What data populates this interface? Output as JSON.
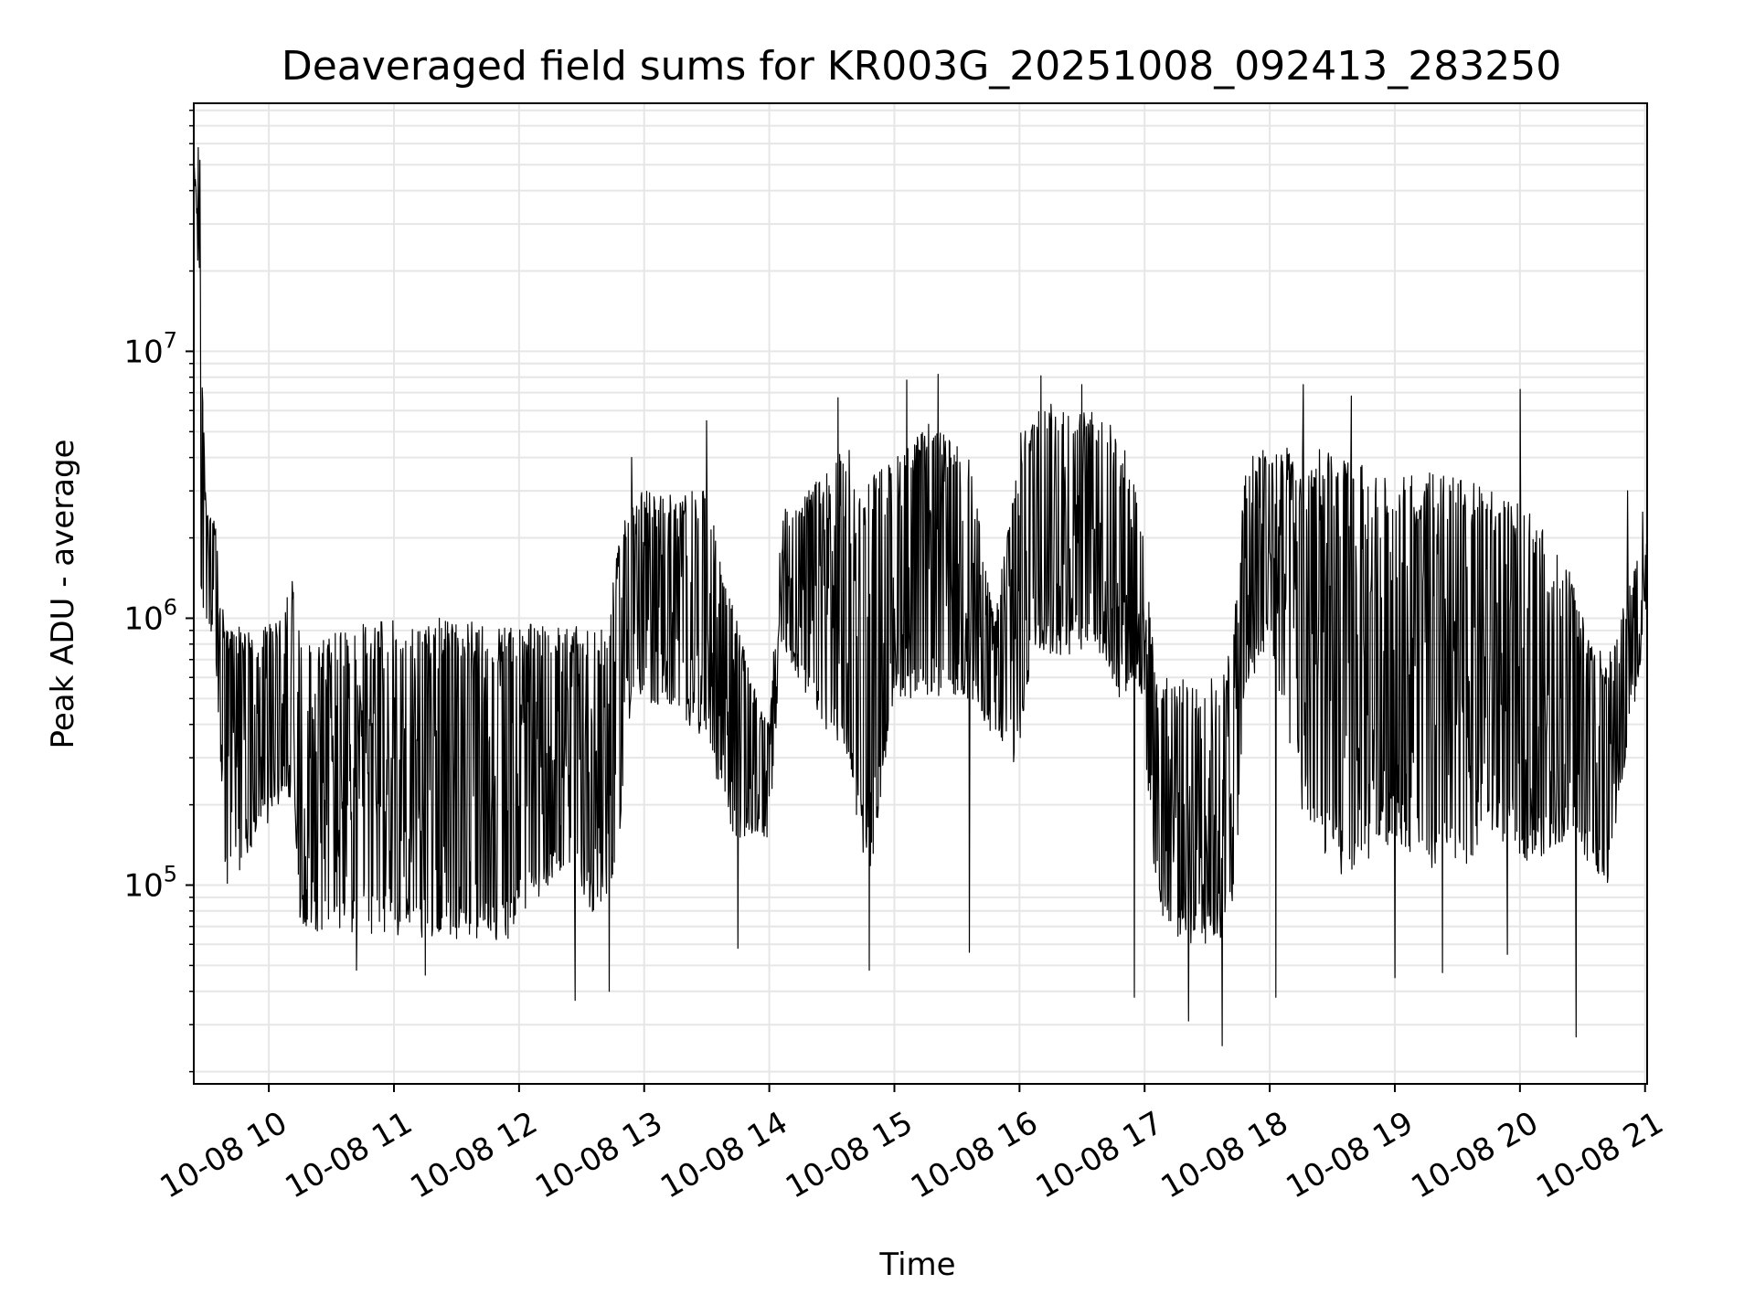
{
  "chart_data": {
    "type": "line",
    "title": "Deaveraged field sums for KR003G_20251008_092413_283250",
    "xlabel": "Time",
    "ylabel": "Peak ADU - average",
    "y_scale": "log",
    "grid": true,
    "x_range": [
      "2025-10-08 09:24",
      "2025-10-08 21:01"
    ],
    "ylim": [
      18000,
      85000000
    ],
    "x_tick_labels": [
      "10-08 10",
      "10-08 11",
      "10-08 12",
      "10-08 13",
      "10-08 14",
      "10-08 15",
      "10-08 16",
      "10-08 17",
      "10-08 18",
      "10-08 19",
      "10-08 20",
      "10-08 21"
    ],
    "x_tick_hours": [
      10,
      11,
      12,
      13,
      14,
      15,
      16,
      17,
      18,
      19,
      20,
      21
    ],
    "y_tick_labels": [
      {
        "value": 100000,
        "base": "10",
        "exp": "5"
      },
      {
        "value": 1000000,
        "base": "10",
        "exp": "6"
      },
      {
        "value": 10000000,
        "base": "10",
        "exp": "7"
      }
    ],
    "series_color": "#000000",
    "envelope_hours": [
      9.42,
      9.5,
      9.58,
      9.66,
      9.75,
      9.9,
      10.1,
      10.2,
      10.25,
      10.5,
      11.0,
      11.5,
      11.9,
      12.3,
      12.7,
      12.8,
      12.9,
      13.2,
      13.5,
      13.7,
      13.85,
      14.0,
      14.1,
      14.3,
      14.6,
      14.8,
      15.0,
      15.3,
      15.6,
      15.8,
      16.0,
      16.1,
      16.3,
      16.6,
      16.8,
      16.95,
      17.1,
      17.3,
      17.6,
      17.72,
      17.8,
      18.0,
      18.3,
      18.6,
      19.0,
      19.4,
      19.8,
      20.1,
      20.4,
      20.55,
      20.7,
      20.85,
      20.95,
      21.0
    ],
    "envelope_low": [
      1100000,
      1000000,
      600000,
      90000,
      110000,
      150000,
      200000,
      220000,
      70000,
      65000,
      65000,
      62000,
      62000,
      110000,
      70000,
      150000,
      500000,
      450000,
      350000,
      150000,
      150000,
      150000,
      800000,
      500000,
      300000,
      100000,
      500000,
      500000,
      500000,
      350000,
      250000,
      800000,
      700000,
      800000,
      500000,
      600000,
      80000,
      60000,
      60000,
      90000,
      500000,
      800000,
      150000,
      100000,
      150000,
      100000,
      150000,
      120000,
      150000,
      120000,
      100000,
      300000,
      600000,
      1000000
    ],
    "envelope_high": [
      60000000,
      2500000,
      2300000,
      900000,
      1000000,
      900000,
      1000000,
      1500000,
      800000,
      900000,
      1000000,
      1000000,
      950000,
      950000,
      900000,
      2000000,
      3000000,
      3000000,
      3000000,
      1200000,
      600000,
      400000,
      2500000,
      3000000,
      4500000,
      3500000,
      4000000,
      5500000,
      4000000,
      1000000,
      5000000,
      6000000,
      6500000,
      6000000,
      5000000,
      3000000,
      600000,
      600000,
      600000,
      1000000,
      4000000,
      4500000,
      4500000,
      4000000,
      3500000,
      3500000,
      3000000,
      2500000,
      1500000,
      900000,
      700000,
      1200000,
      1800000,
      2000000
    ],
    "spikes": [
      {
        "hour": 9.435,
        "value": 58000000
      },
      {
        "hour": 9.45,
        "value": 52000000
      },
      {
        "hour": 10.7,
        "value": 48000
      },
      {
        "hour": 11.25,
        "value": 46000
      },
      {
        "hour": 12.45,
        "value": 37000
      },
      {
        "hour": 12.72,
        "value": 40000
      },
      {
        "hour": 12.9,
        "value": 4000000
      },
      {
        "hour": 13.5,
        "value": 5500000
      },
      {
        "hour": 13.75,
        "value": 58000
      },
      {
        "hour": 14.55,
        "value": 6700000
      },
      {
        "hour": 14.8,
        "value": 48000
      },
      {
        "hour": 15.1,
        "value": 7800000
      },
      {
        "hour": 15.35,
        "value": 8200000
      },
      {
        "hour": 15.6,
        "value": 56000
      },
      {
        "hour": 16.17,
        "value": 8100000
      },
      {
        "hour": 16.5,
        "value": 7500000
      },
      {
        "hour": 16.92,
        "value": 38000
      },
      {
        "hour": 17.35,
        "value": 31000
      },
      {
        "hour": 17.62,
        "value": 25000
      },
      {
        "hour": 18.05,
        "value": 38000
      },
      {
        "hour": 18.27,
        "value": 7500000
      },
      {
        "hour": 18.65,
        "value": 6800000
      },
      {
        "hour": 19.0,
        "value": 45000
      },
      {
        "hour": 19.38,
        "value": 47000
      },
      {
        "hour": 19.9,
        "value": 55000
      },
      {
        "hour": 20.0,
        "value": 7200000
      },
      {
        "hour": 20.45,
        "value": 27000
      },
      {
        "hour": 20.86,
        "value": 3000000
      },
      {
        "hour": 20.98,
        "value": 2500000
      }
    ]
  }
}
